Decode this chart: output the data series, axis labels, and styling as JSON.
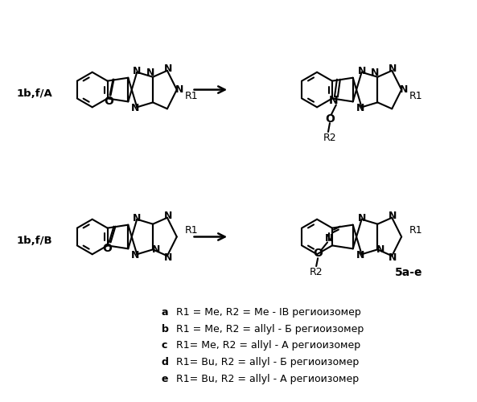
{
  "background_color": "#ffffff",
  "figsize": [
    5.93,
    5.0
  ],
  "dpi": 100,
  "label_1b_fA": "1b,f/A",
  "label_1b_fB": "1b,f/B",
  "label_5ae": "5a-e",
  "legend_texts": [
    [
      "a",
      "  R1 = Me, R2 = Me - ІВ региоизомер"
    ],
    [
      "b",
      "  R1 = Me, R2 = allyl - Б региоизомер"
    ],
    [
      "c",
      "  R1= Me, R2 = allyl - А региоизомер"
    ],
    [
      "d",
      "  R1= Bu, R2 = allyl - Б региоизомер"
    ],
    [
      "e",
      "  R1= Bu, R2 = allyl - А региоизомер"
    ]
  ]
}
